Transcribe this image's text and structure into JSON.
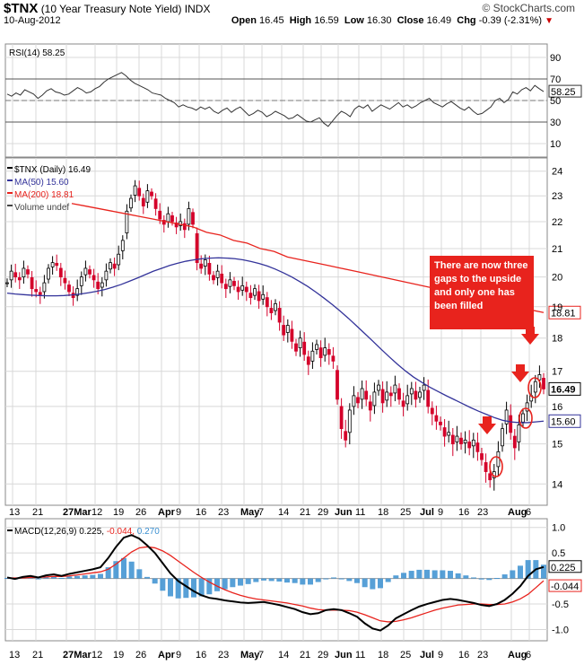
{
  "header": {
    "symbol": "$TNX",
    "name": "(10 Year Treasury Note Yield)",
    "exchange": "INDX",
    "date": "10-Aug-2012",
    "brand": "© StockCharts.com",
    "open_label": "Open",
    "open": "16.45",
    "high_label": "High",
    "high": "16.59",
    "low_label": "Low",
    "low": "16.30",
    "close_label": "Close",
    "close": "16.49",
    "chg_label": "Chg",
    "chg": "-0.39 (-2.31%)",
    "chg_arrow": "▼"
  },
  "annotation": {
    "text": "There are now three gaps to the upside and only one has been filled"
  },
  "colors": {
    "ma50": "#33339a",
    "ma200": "#e8231d",
    "candle_up": "#000000",
    "candle_down": "#d4002a",
    "macd_hist": "#3a8fd0",
    "macd_signal": "#e8231d",
    "macd_line": "#000000",
    "grid": "#d8d8d8"
  },
  "chart_data": [
    {
      "type": "line",
      "panel": "RSI",
      "legend": "RSI(14) 58.25",
      "last_label": "58.25",
      "ylim": [
        0,
        100
      ],
      "yticks": [
        10,
        30,
        50,
        70,
        90
      ],
      "levels": [
        30,
        50,
        70
      ],
      "values": [
        56,
        54,
        57,
        55,
        60,
        58,
        56,
        52,
        55,
        59,
        61,
        58,
        57,
        55,
        56,
        59,
        62,
        60,
        57,
        58,
        61,
        63,
        67,
        70,
        72,
        74,
        76,
        73,
        69,
        66,
        64,
        62,
        60,
        57,
        56,
        55,
        52,
        50,
        48,
        44,
        46,
        44,
        43,
        41,
        44,
        42,
        44,
        40,
        38,
        41,
        43,
        39,
        42,
        44,
        40,
        36,
        38,
        41,
        39,
        35,
        37,
        40,
        38,
        36,
        33,
        34,
        37,
        34,
        31,
        30,
        32,
        34,
        29,
        26,
        31,
        36,
        40,
        38,
        35,
        42,
        45,
        43,
        46,
        40,
        43,
        46,
        44,
        42,
        45,
        48,
        44,
        46,
        43,
        45,
        48,
        50,
        52,
        48,
        46,
        44,
        47,
        49,
        46,
        43,
        41,
        44,
        40,
        37,
        38,
        41,
        44,
        50,
        52,
        48,
        51,
        58,
        56,
        60,
        62,
        59,
        64,
        61,
        58.25
      ]
    },
    {
      "type": "candlestick",
      "panel": "Price",
      "legend": [
        "$TNX (Daily) 16.49",
        "MA(50) 15.60",
        "MA(200) 18.81",
        "Volume undef"
      ],
      "ylim": [
        13.6,
        24.4
      ],
      "log_scale": true,
      "yticks": [
        14,
        15,
        16,
        17,
        18,
        19,
        20,
        21,
        22,
        23,
        24
      ],
      "last_price_label": "16.49",
      "ma50_label": "15.60",
      "ma200_label": "18.81",
      "close": [
        19.8,
        20.2,
        20.0,
        19.9,
        20.3,
        20.1,
        19.6,
        19.5,
        19.4,
        19.8,
        20.3,
        20.5,
        20.4,
        20.0,
        19.8,
        19.5,
        19.3,
        19.6,
        20.0,
        20.3,
        20.1,
        19.9,
        19.6,
        19.8,
        20.2,
        20.5,
        20.3,
        20.8,
        21.3,
        22.4,
        22.9,
        23.4,
        23.0,
        22.6,
        23.2,
        23.0,
        22.5,
        22.1,
        21.9,
        22.3,
        22.0,
        21.8,
        22.0,
        21.7,
        22.5,
        21.9,
        20.5,
        20.3,
        20.6,
        20.1,
        19.9,
        20.2,
        19.8,
        19.6,
        19.9,
        19.7,
        19.5,
        19.7,
        19.5,
        19.3,
        19.6,
        19.2,
        19.4,
        19.0,
        18.8,
        19.1,
        18.5,
        18.1,
        18.4,
        17.9,
        17.6,
        18.0,
        17.5,
        17.2,
        17.6,
        17.8,
        17.4,
        17.7,
        17.5,
        17.3,
        16.2,
        15.4,
        15.1,
        15.9,
        16.3,
        16.1,
        16.5,
        16.2,
        15.9,
        16.4,
        16.6,
        16.1,
        16.4,
        16.3,
        16.6,
        16.2,
        16.0,
        16.3,
        16.5,
        16.2,
        16.4,
        16.6,
        16.0,
        15.8,
        15.6,
        15.5,
        15.2,
        15.3,
        15.0,
        15.2,
        15.0,
        15.1,
        14.9,
        15.1,
        14.8,
        14.6,
        14.3,
        14.1,
        14.3,
        14.8,
        15.4,
        15.9,
        15.3,
        14.9,
        15.5,
        15.8,
        16.1,
        16.3,
        16.7,
        16.9,
        16.49
      ],
      "ma50": [
        19.45,
        19.42,
        19.4,
        19.38,
        19.37,
        19.36,
        19.36,
        19.37,
        19.39,
        19.42,
        19.46,
        19.51,
        19.57,
        19.65,
        19.74,
        19.85,
        19.96,
        20.08,
        20.2,
        20.3,
        20.4,
        20.48,
        20.55,
        20.6,
        20.64,
        20.66,
        20.67,
        20.66,
        20.64,
        20.6,
        20.54,
        20.47,
        20.38,
        20.27,
        20.14,
        20.0,
        19.84,
        19.67,
        19.48,
        19.28,
        19.07,
        18.85,
        18.62,
        18.38,
        18.14,
        17.9,
        17.66,
        17.43,
        17.21,
        17.01,
        16.83,
        16.68,
        16.54,
        16.42,
        16.3,
        16.19,
        16.08,
        15.97,
        15.87,
        15.78,
        15.69,
        15.62,
        15.58,
        15.56,
        15.56,
        15.58,
        15.6
      ],
      "ma200": [
        22.7,
        22.6,
        22.5,
        22.4,
        22.3,
        22.2,
        22.1,
        22.0,
        21.9,
        21.8,
        21.6,
        21.5,
        21.3,
        21.2,
        21.0,
        20.9,
        20.7,
        20.6,
        20.5,
        20.4,
        20.3,
        20.2,
        20.1,
        20.0,
        19.9,
        19.8,
        19.7,
        19.6,
        19.5,
        19.4,
        19.3,
        19.2,
        19.1,
        19.0,
        18.9,
        18.81
      ]
    },
    {
      "type": "line",
      "panel": "MACD",
      "legend_prefix": "MACD(12,26,9)",
      "macd_value": "0.225",
      "signal_value": "-0.044",
      "hist_value": "0.270",
      "ylim": [
        -1.15,
        1.1
      ],
      "yticks": [
        -1.0,
        -0.5,
        0,
        0.5,
        1.0
      ],
      "ytick_labels": [
        "-1.0",
        "-0.5",
        "",
        "0.5",
        "1.0"
      ],
      "last_macd_label": "0.225",
      "last_signal_label": "-0.044",
      "macd": [
        0.02,
        -0.01,
        0.03,
        0.05,
        0.02,
        0.06,
        0.08,
        0.05,
        0.09,
        0.12,
        0.15,
        0.18,
        0.22,
        0.4,
        0.62,
        0.8,
        0.85,
        0.78,
        0.65,
        0.5,
        0.3,
        0.1,
        -0.05,
        -0.15,
        -0.25,
        -0.33,
        -0.38,
        -0.4,
        -0.43,
        -0.45,
        -0.47,
        -0.48,
        -0.47,
        -0.46,
        -0.49,
        -0.52,
        -0.56,
        -0.6,
        -0.66,
        -0.7,
        -0.68,
        -0.62,
        -0.6,
        -0.62,
        -0.68,
        -0.75,
        -0.88,
        -0.98,
        -1.02,
        -0.92,
        -0.78,
        -0.7,
        -0.62,
        -0.55,
        -0.5,
        -0.46,
        -0.42,
        -0.4,
        -0.42,
        -0.45,
        -0.48,
        -0.52,
        -0.54,
        -0.5,
        -0.42,
        -0.3,
        -0.15,
        0.05,
        0.18,
        0.225
      ],
      "signal": [
        0.01,
        0.01,
        0.01,
        0.02,
        0.02,
        0.03,
        0.04,
        0.04,
        0.05,
        0.07,
        0.09,
        0.11,
        0.13,
        0.18,
        0.28,
        0.4,
        0.52,
        0.6,
        0.62,
        0.6,
        0.54,
        0.45,
        0.34,
        0.23,
        0.12,
        0.02,
        -0.07,
        -0.15,
        -0.22,
        -0.28,
        -0.33,
        -0.37,
        -0.4,
        -0.42,
        -0.44,
        -0.46,
        -0.48,
        -0.51,
        -0.54,
        -0.58,
        -0.61,
        -0.62,
        -0.62,
        -0.62,
        -0.63,
        -0.66,
        -0.71,
        -0.77,
        -0.83,
        -0.85,
        -0.84,
        -0.81,
        -0.77,
        -0.72,
        -0.67,
        -0.62,
        -0.58,
        -0.55,
        -0.52,
        -0.51,
        -0.5,
        -0.5,
        -0.51,
        -0.51,
        -0.5,
        -0.46,
        -0.4,
        -0.31,
        -0.18,
        -0.044
      ]
    }
  ],
  "x_axis": {
    "labels": [
      "13",
      "21",
      "27Mar",
      "12",
      "19",
      "26",
      "Apr",
      "9",
      "16",
      "23",
      "May",
      "7",
      "14",
      "21",
      "29",
      "Jun",
      "11",
      "18",
      "25",
      "Jul",
      "9",
      "16",
      "23",
      "Aug",
      "6"
    ],
    "bold": [
      "Mar",
      "Apr",
      "May",
      "Jun",
      "Jul",
      "Aug"
    ]
  }
}
